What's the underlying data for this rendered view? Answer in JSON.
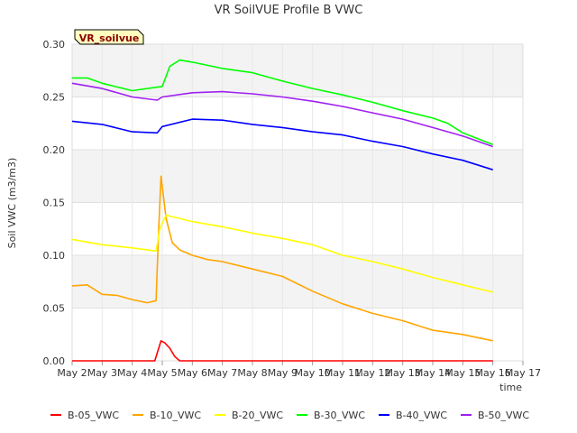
{
  "chart_data": {
    "type": "line",
    "title": "VR SoilVUE Profile B VWC",
    "badge": "VR_soilvue",
    "xlabel": "time",
    "ylabel": "Soil VWC (m3/m3)",
    "xlim": [
      "2024-05-02",
      "2024-05-17"
    ],
    "ylim": [
      0,
      0.3
    ],
    "y_ticks": [
      "0.00",
      "0.05",
      "0.10",
      "0.15",
      "0.20",
      "0.25",
      "0.30"
    ],
    "x_ticks": [
      "May 2",
      "May 3",
      "May 4",
      "May 5",
      "May 6",
      "May 7",
      "May 8",
      "May 9",
      "May 10",
      "May 11",
      "May 12",
      "May 13",
      "May 14",
      "May 15",
      "May 16",
      "May 17"
    ],
    "grid": true,
    "legend_position": "bottom",
    "series": [
      {
        "name": "B-05_VWC",
        "color": "#ff0000",
        "x": [
          "2024-05-02",
          "2024-05-04",
          "2024-05-04 18:00",
          "2024-05-04 23:00",
          "2024-05-05 02:00",
          "2024-05-05 06:00",
          "2024-05-05 10:00",
          "2024-05-05 14:00",
          "2024-05-06",
          "2024-05-10",
          "2024-05-14",
          "2024-05-16"
        ],
        "y": [
          0.0,
          0.0,
          0.0,
          0.019,
          0.017,
          0.012,
          0.004,
          0.0,
          0.0,
          0.0,
          0.0,
          0.0
        ]
      },
      {
        "name": "B-10_VWC",
        "color": "#ffa500",
        "x": [
          "2024-05-02",
          "2024-05-02 12:00",
          "2024-05-03",
          "2024-05-03 12:00",
          "2024-05-04",
          "2024-05-04 12:00",
          "2024-05-04 19:00",
          "2024-05-04 21:00",
          "2024-05-04 23:00",
          "2024-05-05 03:00",
          "2024-05-05 08:00",
          "2024-05-05 14:00",
          "2024-05-06",
          "2024-05-06 12:00",
          "2024-05-07",
          "2024-05-08",
          "2024-05-09",
          "2024-05-10",
          "2024-05-11",
          "2024-05-12",
          "2024-05-13",
          "2024-05-14",
          "2024-05-15",
          "2024-05-16"
        ],
        "y": [
          0.071,
          0.072,
          0.063,
          0.062,
          0.058,
          0.055,
          0.057,
          0.12,
          0.175,
          0.135,
          0.112,
          0.105,
          0.1,
          0.096,
          0.094,
          0.087,
          0.08,
          0.066,
          0.054,
          0.045,
          0.038,
          0.029,
          0.025,
          0.019
        ]
      },
      {
        "name": "B-20_VWC",
        "color": "#ffff00",
        "x": [
          "2024-05-02",
          "2024-05-03",
          "2024-05-04",
          "2024-05-04 19:00",
          "2024-05-04 22:00",
          "2024-05-05 03:00",
          "2024-05-06",
          "2024-05-07",
          "2024-05-08",
          "2024-05-09",
          "2024-05-10",
          "2024-05-11",
          "2024-05-12",
          "2024-05-13",
          "2024-05-14",
          "2024-05-15",
          "2024-05-16"
        ],
        "y": [
          0.115,
          0.11,
          0.107,
          0.104,
          0.125,
          0.138,
          0.132,
          0.127,
          0.121,
          0.116,
          0.11,
          0.1,
          0.094,
          0.087,
          0.079,
          0.072,
          0.065
        ]
      },
      {
        "name": "B-30_VWC",
        "color": "#00ff00",
        "x": [
          "2024-05-02",
          "2024-05-02 12:00",
          "2024-05-03",
          "2024-05-04",
          "2024-05-05",
          "2024-05-05 06:00",
          "2024-05-05 14:00",
          "2024-05-06",
          "2024-05-07",
          "2024-05-08",
          "2024-05-09",
          "2024-05-10",
          "2024-05-11",
          "2024-05-12",
          "2024-05-13",
          "2024-05-14",
          "2024-05-14 12:00",
          "2024-05-15",
          "2024-05-16"
        ],
        "y": [
          0.268,
          0.268,
          0.263,
          0.256,
          0.26,
          0.279,
          0.285,
          0.283,
          0.277,
          0.273,
          0.265,
          0.258,
          0.252,
          0.245,
          0.237,
          0.23,
          0.225,
          0.216,
          0.205
        ]
      },
      {
        "name": "B-40_VWC",
        "color": "#0000ff",
        "x": [
          "2024-05-02",
          "2024-05-03",
          "2024-05-04",
          "2024-05-04 20:00",
          "2024-05-05",
          "2024-05-06",
          "2024-05-07",
          "2024-05-08",
          "2024-05-09",
          "2024-05-10",
          "2024-05-11",
          "2024-05-12",
          "2024-05-13",
          "2024-05-14",
          "2024-05-15",
          "2024-05-16"
        ],
        "y": [
          0.227,
          0.224,
          0.217,
          0.216,
          0.222,
          0.229,
          0.228,
          0.224,
          0.221,
          0.217,
          0.214,
          0.208,
          0.203,
          0.196,
          0.19,
          0.181
        ]
      },
      {
        "name": "B-50_VWC",
        "color": "#a020f0",
        "x": [
          "2024-05-02",
          "2024-05-03",
          "2024-05-04",
          "2024-05-04 20:00",
          "2024-05-05",
          "2024-05-06",
          "2024-05-07",
          "2024-05-08",
          "2024-05-09",
          "2024-05-10",
          "2024-05-11",
          "2024-05-12",
          "2024-05-13",
          "2024-05-14",
          "2024-05-15",
          "2024-05-16"
        ],
        "y": [
          0.263,
          0.258,
          0.25,
          0.247,
          0.25,
          0.254,
          0.255,
          0.253,
          0.25,
          0.246,
          0.241,
          0.235,
          0.229,
          0.221,
          0.213,
          0.203
        ]
      }
    ]
  }
}
